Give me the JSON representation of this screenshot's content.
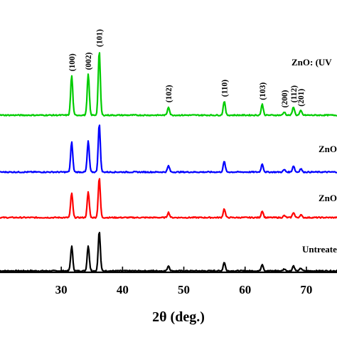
{
  "chart_data": {
    "type": "line",
    "title": "",
    "xlabel": "2θ (deg.)",
    "ylabel": "",
    "xlim": [
      20,
      75
    ],
    "x_ticks": [
      30,
      40,
      50,
      60,
      70
    ],
    "grid": false,
    "legend": "none",
    "peaks": [
      {
        "x": 31.7,
        "label": "(100)",
        "height": 0.62
      },
      {
        "x": 34.4,
        "label": "(002)",
        "height": 0.64
      },
      {
        "x": 36.2,
        "label": "(101)",
        "height": 1.0
      },
      {
        "x": 47.5,
        "label": "(102)",
        "height": 0.13
      },
      {
        "x": 56.6,
        "label": "(110)",
        "height": 0.22
      },
      {
        "x": 62.8,
        "label": "(103)",
        "height": 0.17
      },
      {
        "x": 66.4,
        "label": "(200)",
        "height": 0.05
      },
      {
        "x": 67.9,
        "label": "(112)",
        "height": 0.13
      },
      {
        "x": 69.1,
        "label": "(201)",
        "height": 0.07
      }
    ],
    "series": [
      {
        "name": "Untreate",
        "color": "#000000",
        "peak_scale": 0.62
      },
      {
        "name": "ZnO",
        "color": "#ff0000",
        "peak_scale": 0.62
      },
      {
        "name": "ZnO",
        "color": "#0000ff",
        "peak_scale": 0.75
      },
      {
        "name": "ZnO: (UV",
        "color": "#00cc00",
        "peak_scale": 1.0
      }
    ]
  }
}
